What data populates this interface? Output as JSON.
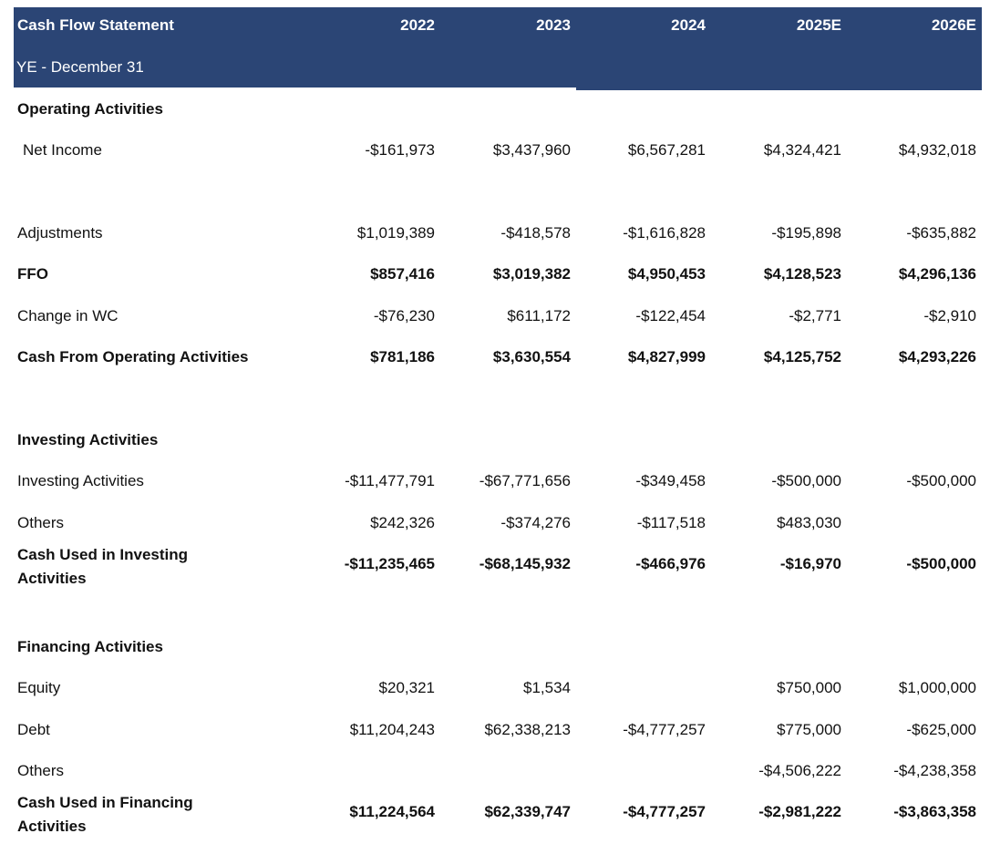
{
  "header": {
    "title": "Cash Flow Statement",
    "subtitle": "YE - December 31",
    "years": [
      "2022",
      "2023",
      "2024",
      "2025E",
      "2026E"
    ],
    "bg_color": "#2b4575"
  },
  "rows": {
    "operating_heading": "Operating Activities",
    "net_income": {
      "label": "Net Income",
      "values": [
        "-$161,973",
        "$3,437,960",
        "$6,567,281",
        "$4,324,421",
        "$4,932,018"
      ]
    },
    "adjustments": {
      "label": "Adjustments",
      "values": [
        "$1,019,389",
        "-$418,578",
        "-$1,616,828",
        "-$195,898",
        "-$635,882"
      ]
    },
    "ffo": {
      "label": "FFO",
      "values": [
        "$857,416",
        "$3,019,382",
        "$4,950,453",
        "$4,128,523",
        "$4,296,136"
      ]
    },
    "change_wc": {
      "label": "Change in WC",
      "values": [
        "-$76,230",
        "$611,172",
        "-$122,454",
        "-$2,771",
        "-$2,910"
      ]
    },
    "cfo": {
      "label": "Cash From Operating Activities",
      "values": [
        "$781,186",
        "$3,630,554",
        "$4,827,999",
        "$4,125,752",
        "$4,293,226"
      ]
    },
    "investing_heading": "Investing Activities",
    "investing": {
      "label": "Investing Activities",
      "values": [
        "-$11,477,791",
        "-$67,771,656",
        "-$349,458",
        "-$500,000",
        "-$500,000"
      ]
    },
    "inv_others": {
      "label": "Others",
      "values": [
        "$242,326",
        "-$374,276",
        "-$117,518",
        "$483,030",
        ""
      ]
    },
    "cfi": {
      "label": "Cash Used in Investing Activities",
      "values": [
        "-$11,235,465",
        "-$68,145,932",
        "-$466,976",
        "-$16,970",
        "-$500,000"
      ]
    },
    "financing_heading": "Financing Activities",
    "equity": {
      "label": "Equity",
      "values": [
        "$20,321",
        "$1,534",
        "",
        "$750,000",
        "$1,000,000"
      ]
    },
    "debt": {
      "label": "Debt",
      "values": [
        "$11,204,243",
        "$62,338,213",
        "-$4,777,257",
        "$775,000",
        "-$625,000"
      ]
    },
    "fin_others": {
      "label": "Others",
      "values": [
        "",
        "",
        "",
        "-$4,506,222",
        "-$4,238,358"
      ]
    },
    "cff": {
      "label": "Cash Used in Financing Activities",
      "values": [
        "$11,224,564",
        "$62,339,747",
        "-$4,777,257",
        "-$2,981,222",
        "-$3,863,358"
      ]
    }
  }
}
